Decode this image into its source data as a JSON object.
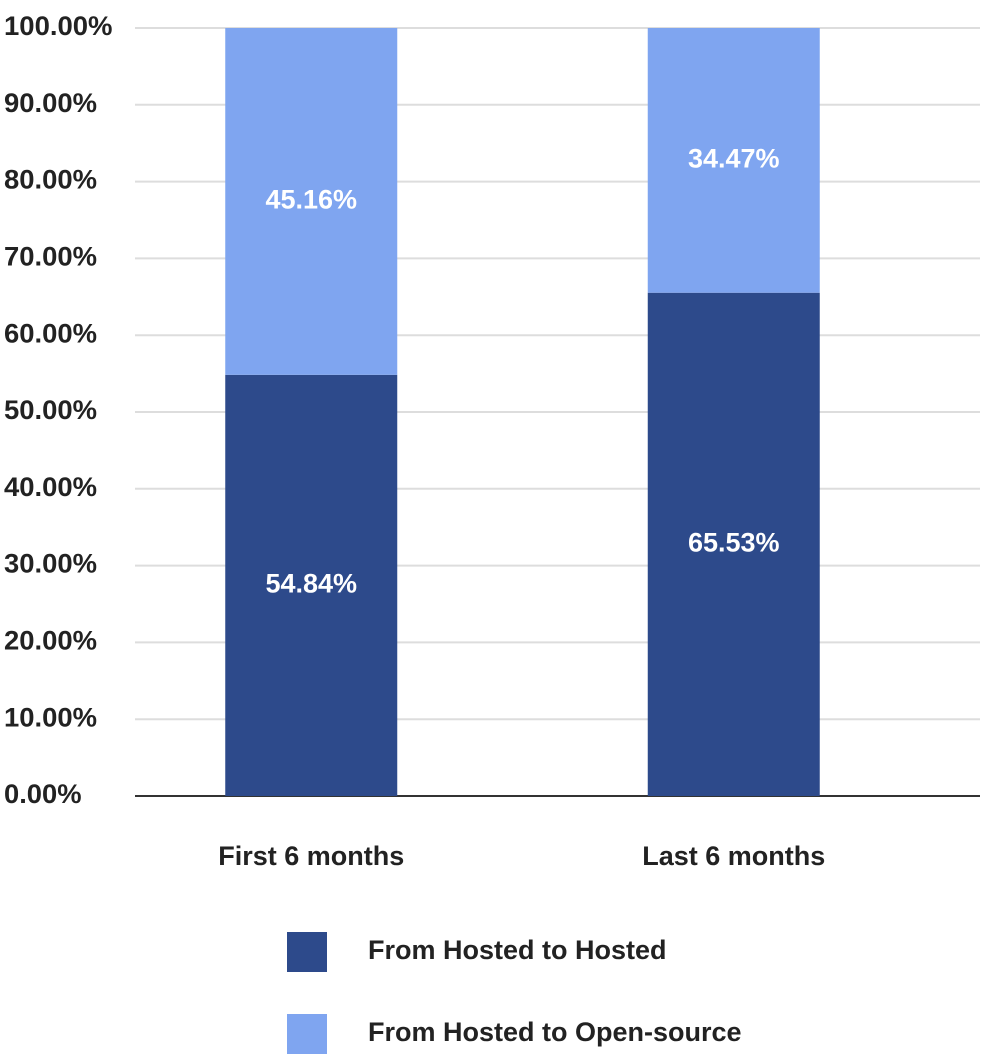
{
  "chart_data": {
    "type": "stacked_bar",
    "categories": [
      "First 6 months",
      "Last 6 months"
    ],
    "series": [
      {
        "name": "From Hosted to Hosted",
        "color": "#2d4a8b",
        "values": [
          54.84,
          65.53
        ],
        "value_labels": [
          "54.84%",
          "65.53%"
        ]
      },
      {
        "name": "From Hosted to Open-source",
        "color": "#7fa5f0",
        "values": [
          45.16,
          34.47
        ],
        "value_labels": [
          "45.16%",
          "34.47%"
        ]
      }
    ],
    "ylim": [
      0,
      100
    ],
    "yticks": [
      {
        "value": 0,
        "label": "0.00%"
      },
      {
        "value": 10,
        "label": "10.00%"
      },
      {
        "value": 20,
        "label": "20.00%"
      },
      {
        "value": 30,
        "label": "30.00%"
      },
      {
        "value": 40,
        "label": "40.00%"
      },
      {
        "value": 50,
        "label": "50.00%"
      },
      {
        "value": 60,
        "label": "60.00%"
      },
      {
        "value": 70,
        "label": "70.00%"
      },
      {
        "value": 80,
        "label": "80.00%"
      },
      {
        "value": 90,
        "label": "90.00%"
      },
      {
        "value": 100,
        "label": "100.00%"
      }
    ],
    "grid": true,
    "legend": "bottom"
  }
}
